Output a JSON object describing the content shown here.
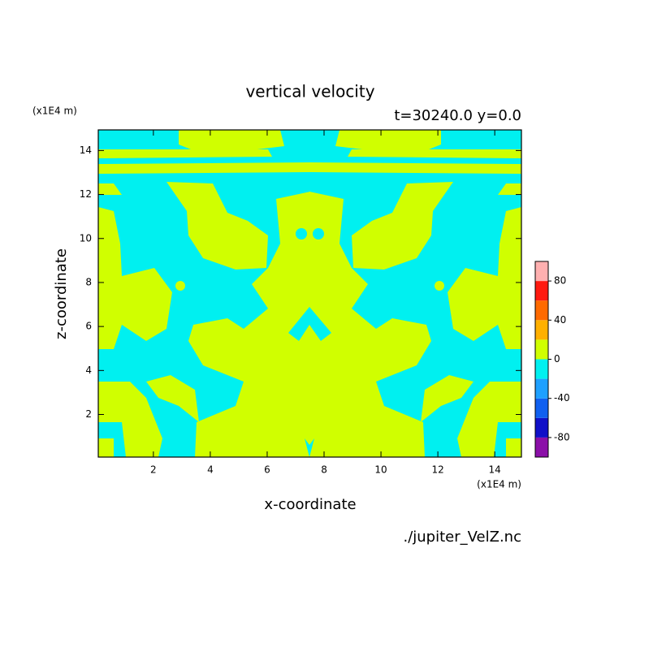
{
  "chart_data": {
    "type": "contour",
    "title": "vertical velocity",
    "subtitle": "t=30240.0 y=0.0",
    "x_label": "x-coordinate",
    "y_label": "z-coordinate",
    "x_unit": "(x1E4 m)",
    "y_unit": "(x1E4 m)",
    "source": "./jupiter_VelZ.nc",
    "xlim": [
      0.0625,
      14.9375
    ],
    "ylim": [
      0.0625,
      14.9375
    ],
    "xticks": [
      2,
      4,
      6,
      8,
      10,
      12,
      14
    ],
    "yticks": [
      2,
      4,
      6,
      8,
      10,
      12,
      14
    ],
    "colorbar": {
      "levels": [
        -100,
        -80,
        -60,
        -40,
        -20,
        0,
        20,
        40,
        60,
        80,
        100
      ],
      "colors": [
        "#8b0fa8",
        "#1010c8",
        "#1060f0",
        "#1ea0ff",
        "#00f0f0",
        "#d0ff00",
        "#ffb000",
        "#ff6a00",
        "#ff1a10",
        "#ffb0b0"
      ],
      "ticks": [
        -80,
        -40,
        0,
        40,
        80
      ]
    }
  }
}
